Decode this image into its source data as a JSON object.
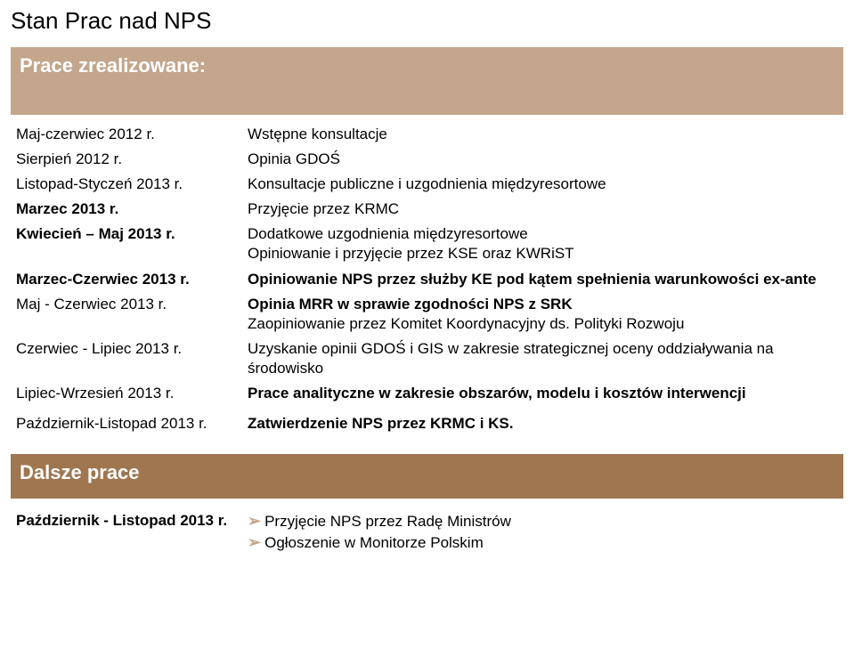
{
  "title": "Stan Prac nad NPS",
  "band_top": "Prace zrealizowane:",
  "rows": [
    {
      "left": "Maj-czerwiec 2012 r.",
      "left_bold": false,
      "right": "Wstępne konsultacje",
      "right_bold": false
    },
    {
      "left": "Sierpień 2012 r.",
      "left_bold": false,
      "right": "Opinia GDOŚ",
      "right_bold": false
    },
    {
      "left": "Listopad-Styczeń 2013 r.",
      "left_bold": false,
      "right": "Konsultacje publiczne i uzgodnienia międzyresortowe",
      "right_bold": false
    },
    {
      "left": "Marzec 2013 r.",
      "left_bold": true,
      "right": "Przyjęcie przez KRMC",
      "right_bold": false
    },
    {
      "left": "Kwiecień – Maj 2013 r.",
      "left_bold": true,
      "right": "Dodatkowe uzgodnienia międzyresortowe\nOpiniowanie i przyjęcie przez KSE oraz KWRiST",
      "right_bold": false
    },
    {
      "left": "Marzec-Czerwiec 2013 r.",
      "left_bold": true,
      "right": "Opiniowanie NPS przez służby KE pod kątem spełnienia warunkowości ex-ante",
      "right_bold": true
    },
    {
      "left": "Maj - Czerwiec 2013 r.",
      "left_bold": false,
      "right": "Opinia MRR w sprawie zgodności NPS z SRK\nZaopiniowanie przez Komitet Koordynacyjny ds. Polityki Rozwoju",
      "right_bold_first": true
    },
    {
      "left": "Czerwiec - Lipiec 2013 r.",
      "left_bold": false,
      "right": "Uzyskanie opinii GDOŚ i GIS w zakresie strategicznej oceny oddziaływania na środowisko",
      "right_bold": false
    },
    {
      "left": "Lipiec-Wrzesień 2013 r.",
      "left_bold": false,
      "right": "Prace analityczne w zakresie obszarów, modelu i kosztów interwencji",
      "right_bold": true
    },
    {
      "left": "",
      "left_bold": false,
      "right": "",
      "right_bold": false
    },
    {
      "left": "Październik-Listopad 2013 r.",
      "left_bold": false,
      "right": "Zatwierdzenie NPS przez KRMC i KS.",
      "right_bold": true
    }
  ],
  "band_bottom": "Dalsze prace",
  "footer": {
    "left": "Październik - Listopad  2013 r.",
    "items": [
      "Przyjęcie NPS przez Radę Ministrów",
      "Ogłoszenie w Monitorze Polskim"
    ]
  },
  "colors": {
    "band_light": "#c3a68b",
    "band_dark": "#9f7650",
    "text": "#000000",
    "bullet": "#c3a68b"
  }
}
